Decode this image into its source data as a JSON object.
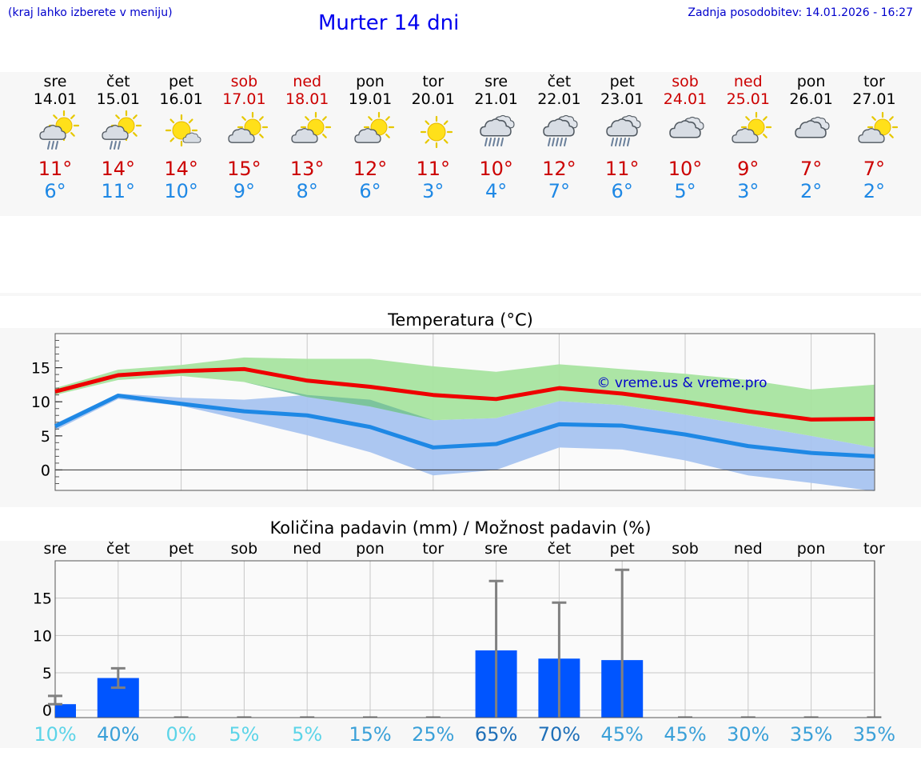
{
  "header": {
    "hint": "(kraj lahko izberete v meniju)",
    "title": "Murter 14 dni",
    "updated": "Zadnja posodobitev: 14.01.2026 - 16:27"
  },
  "days": [
    {
      "weekday": "sre",
      "date": "14.01",
      "icon": "sun-cloud-rain-icon",
      "max": "11°",
      "min": "6°",
      "weekend": false
    },
    {
      "weekday": "čet",
      "date": "15.01",
      "icon": "sun-cloud-rain-icon",
      "max": "14°",
      "min": "11°",
      "weekend": false
    },
    {
      "weekday": "pet",
      "date": "16.01",
      "icon": "sun-small-cloud-icon",
      "max": "14°",
      "min": "10°",
      "weekend": false
    },
    {
      "weekday": "sob",
      "date": "17.01",
      "icon": "sun-cloud-icon",
      "max": "15°",
      "min": "9°",
      "weekend": true
    },
    {
      "weekday": "ned",
      "date": "18.01",
      "icon": "sun-cloud-icon",
      "max": "13°",
      "min": "8°",
      "weekend": true
    },
    {
      "weekday": "pon",
      "date": "19.01",
      "icon": "sun-cloud-icon",
      "max": "12°",
      "min": "6°",
      "weekend": false
    },
    {
      "weekday": "tor",
      "date": "20.01",
      "icon": "sun-icon",
      "max": "11°",
      "min": "3°",
      "weekend": false
    },
    {
      "weekday": "sre",
      "date": "21.01",
      "icon": "cloud-rain-icon",
      "max": "10°",
      "min": "4°",
      "weekend": false
    },
    {
      "weekday": "čet",
      "date": "22.01",
      "icon": "cloud-rain-icon",
      "max": "12°",
      "min": "7°",
      "weekend": false
    },
    {
      "weekday": "pet",
      "date": "23.01",
      "icon": "cloud-rain-icon",
      "max": "11°",
      "min": "6°",
      "weekend": false
    },
    {
      "weekday": "sob",
      "date": "24.01",
      "icon": "cloud-icon",
      "max": "10°",
      "min": "5°",
      "weekend": true
    },
    {
      "weekday": "ned",
      "date": "25.01",
      "icon": "sun-cloud-icon",
      "max": "9°",
      "min": "3°",
      "weekend": true
    },
    {
      "weekday": "pon",
      "date": "26.01",
      "icon": "cloud-icon",
      "max": "7°",
      "min": "2°",
      "weekend": false
    },
    {
      "weekday": "tor",
      "date": "27.01",
      "icon": "sun-cloud-icon",
      "max": "7°",
      "min": "2°",
      "weekend": false
    }
  ],
  "colors": {
    "max_line": "#ee0000",
    "min_line": "#1e88e5",
    "max_band": "#a8e4a0",
    "min_band": "#a8c4f0",
    "overlap_band": "#7cc49c",
    "bar": "#0055ff",
    "whisker": "#808080",
    "grid": "#c8c8c8"
  },
  "chart_data": [
    {
      "type": "line",
      "title": "Temperatura (°C)",
      "watermark": "© vreme.us & vreme.pro",
      "ylim": [
        -3,
        20
      ],
      "yticks": [
        0,
        5,
        10,
        15
      ],
      "series": [
        {
          "name": "max",
          "values": [
            11.5,
            13.9,
            14.5,
            14.8,
            13.1,
            12.2,
            11.0,
            10.4,
            12.0,
            11.2,
            10.0,
            8.6,
            7.4,
            7.5
          ]
        },
        {
          "name": "min",
          "values": [
            6.4,
            10.9,
            9.7,
            8.6,
            8.0,
            6.3,
            3.3,
            3.8,
            6.7,
            6.5,
            5.2,
            3.5,
            2.5,
            2.0
          ]
        }
      ],
      "bands": [
        {
          "name": "max_range",
          "low": [
            11.0,
            13.2,
            13.8,
            12.9,
            10.7,
            9.3,
            7.3,
            7.6,
            10.1,
            9.5,
            8.1,
            6.6,
            5.0,
            3.3
          ],
          "high": [
            12.0,
            14.7,
            15.4,
            16.5,
            16.3,
            16.3,
            15.2,
            14.4,
            15.5,
            14.8,
            14.1,
            13.2,
            11.8,
            12.5
          ]
        },
        {
          "name": "min_range",
          "low": [
            5.8,
            10.4,
            9.4,
            7.3,
            5.1,
            2.6,
            -0.8,
            0.0,
            3.3,
            3.0,
            1.4,
            -0.8,
            -1.9,
            -3.1
          ],
          "high": [
            6.8,
            11.2,
            10.6,
            10.3,
            11.0,
            10.3,
            7.3,
            7.6,
            10.1,
            9.5,
            8.1,
            6.6,
            5.0,
            3.3
          ]
        }
      ]
    },
    {
      "type": "bar",
      "title": "Količina padavin (mm) / Možnost padavin (%)",
      "categories": [
        "sre",
        "čet",
        "pet",
        "sob",
        "ned",
        "pon",
        "tor",
        "sre",
        "čet",
        "pet",
        "sob",
        "ned",
        "pon",
        "tor"
      ],
      "ylim": [
        -1,
        20
      ],
      "yticks": [
        0,
        5,
        10,
        15
      ],
      "values": [
        0.8,
        4.3,
        0,
        0,
        0,
        0,
        0,
        8.0,
        6.9,
        6.7,
        0,
        0,
        0,
        0
      ],
      "err_low": [
        0.8,
        3.0,
        0,
        0,
        0,
        0,
        0,
        0,
        0,
        0,
        0,
        0,
        0,
        0
      ],
      "err_high": [
        1.9,
        5.6,
        0,
        0,
        0,
        0,
        0,
        17.3,
        14.4,
        18.8,
        0,
        0,
        0,
        0
      ],
      "probabilities": [
        "10%",
        "40%",
        "0%",
        "5%",
        "5%",
        "15%",
        "25%",
        "65%",
        "70%",
        "45%",
        "45%",
        "30%",
        "35%",
        "35%"
      ],
      "prob_colors": [
        "#5cd4e8",
        "#3aa0d8",
        "#5cd4e8",
        "#5cd4e8",
        "#5cd4e8",
        "#3aa0d8",
        "#3aa0d8",
        "#1e6fb8",
        "#1e6fb8",
        "#3aa0d8",
        "#3aa0d8",
        "#3aa0d8",
        "#3aa0d8",
        "#3aa0d8"
      ]
    }
  ]
}
